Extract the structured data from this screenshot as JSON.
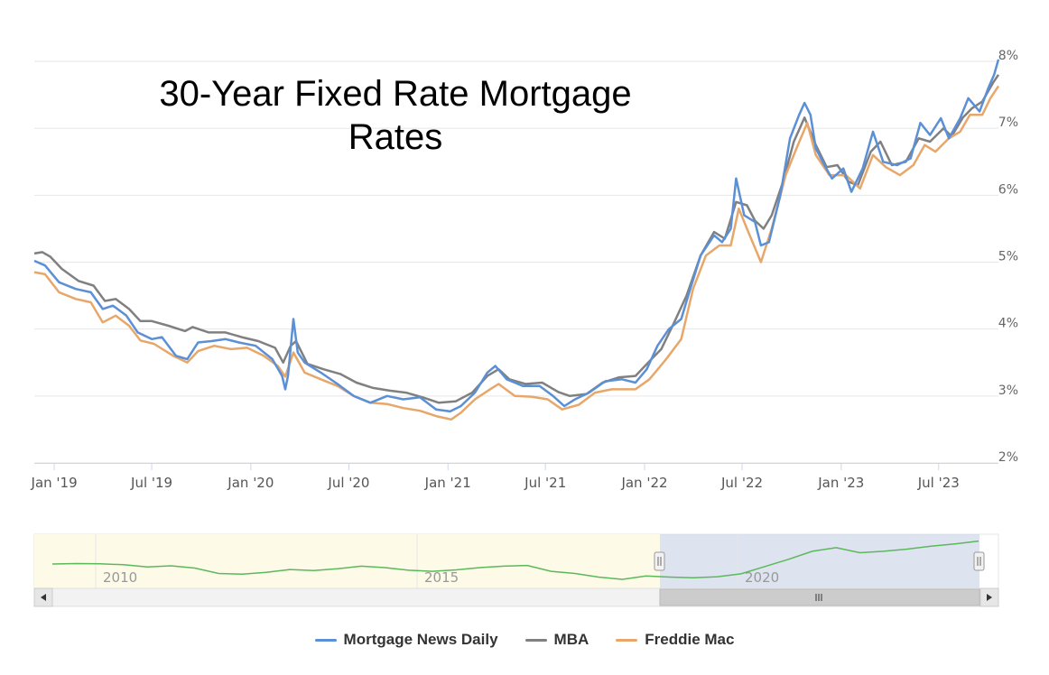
{
  "chart_data": {
    "type": "line",
    "title_lines": [
      "30-Year Fixed Rate Mortgage",
      "Rates"
    ],
    "y_unit": "%",
    "ylim": [
      2,
      8
    ],
    "y_ticks": [
      2,
      3,
      4,
      5,
      6,
      7,
      8
    ],
    "y_tick_labels": [
      "2%",
      "3%",
      "4%",
      "5%",
      "6%",
      "7%",
      "8%"
    ],
    "x_range": [
      "2018-11-25",
      "2023-10-20"
    ],
    "x_ticks": [
      {
        "date": "2019-01-01",
        "label": "Jan '19"
      },
      {
        "date": "2019-07-01",
        "label": "Jul '19"
      },
      {
        "date": "2020-01-01",
        "label": "Jan '20"
      },
      {
        "date": "2020-07-01",
        "label": "Jul '20"
      },
      {
        "date": "2021-01-01",
        "label": "Jan '21"
      },
      {
        "date": "2021-07-01",
        "label": "Jul '21"
      },
      {
        "date": "2022-01-01",
        "label": "Jan '22"
      },
      {
        "date": "2022-07-01",
        "label": "Jul '22"
      },
      {
        "date": "2023-01-01",
        "label": "Jan '23"
      },
      {
        "date": "2023-07-01",
        "label": "Jul '23"
      }
    ],
    "grid": true,
    "legend_position": "bottom-center",
    "series": [
      {
        "name": "Mortgage News Daily",
        "color": "#5b8fd6",
        "points": [
          [
            "2018-11-25",
            5.02
          ],
          [
            "2018-12-15",
            4.95
          ],
          [
            "2019-01-10",
            4.7
          ],
          [
            "2019-02-10",
            4.6
          ],
          [
            "2019-03-10",
            4.55
          ],
          [
            "2019-04-01",
            4.3
          ],
          [
            "2019-04-20",
            4.35
          ],
          [
            "2019-05-15",
            4.2
          ],
          [
            "2019-06-05",
            3.95
          ],
          [
            "2019-07-01",
            3.85
          ],
          [
            "2019-07-20",
            3.88
          ],
          [
            "2019-08-15",
            3.6
          ],
          [
            "2019-09-05",
            3.55
          ],
          [
            "2019-09-25",
            3.8
          ],
          [
            "2019-10-20",
            3.82
          ],
          [
            "2019-11-15",
            3.85
          ],
          [
            "2019-12-10",
            3.8
          ],
          [
            "2020-01-10",
            3.75
          ],
          [
            "2020-02-10",
            3.55
          ],
          [
            "2020-02-28",
            3.3
          ],
          [
            "2020-03-05",
            3.1
          ],
          [
            "2020-03-10",
            3.3
          ],
          [
            "2020-03-20",
            4.15
          ],
          [
            "2020-03-28",
            3.65
          ],
          [
            "2020-04-10",
            3.5
          ],
          [
            "2020-05-10",
            3.35
          ],
          [
            "2020-06-10",
            3.18
          ],
          [
            "2020-07-10",
            3.0
          ],
          [
            "2020-08-10",
            2.9
          ],
          [
            "2020-09-10",
            3.0
          ],
          [
            "2020-10-10",
            2.95
          ],
          [
            "2020-11-10",
            2.98
          ],
          [
            "2020-12-10",
            2.8
          ],
          [
            "2021-01-05",
            2.77
          ],
          [
            "2021-01-25",
            2.85
          ],
          [
            "2021-02-20",
            3.05
          ],
          [
            "2021-03-15",
            3.35
          ],
          [
            "2021-03-30",
            3.45
          ],
          [
            "2021-04-20",
            3.25
          ],
          [
            "2021-05-20",
            3.15
          ],
          [
            "2021-06-20",
            3.15
          ],
          [
            "2021-07-15",
            3.0
          ],
          [
            "2021-08-05",
            2.85
          ],
          [
            "2021-08-25",
            2.95
          ],
          [
            "2021-09-20",
            3.05
          ],
          [
            "2021-10-20",
            3.22
          ],
          [
            "2021-11-20",
            3.25
          ],
          [
            "2021-12-15",
            3.2
          ],
          [
            "2022-01-05",
            3.4
          ],
          [
            "2022-01-25",
            3.75
          ],
          [
            "2022-02-15",
            4.0
          ],
          [
            "2022-03-10",
            4.15
          ],
          [
            "2022-03-25",
            4.55
          ],
          [
            "2022-04-15",
            5.1
          ],
          [
            "2022-05-10",
            5.4
          ],
          [
            "2022-05-25",
            5.3
          ],
          [
            "2022-06-10",
            5.5
          ],
          [
            "2022-06-20",
            6.25
          ],
          [
            "2022-07-05",
            5.7
          ],
          [
            "2022-07-25",
            5.6
          ],
          [
            "2022-08-05",
            5.25
          ],
          [
            "2022-08-20",
            5.3
          ],
          [
            "2022-09-10",
            6.0
          ],
          [
            "2022-09-28",
            6.85
          ],
          [
            "2022-10-15",
            7.2
          ],
          [
            "2022-10-25",
            7.38
          ],
          [
            "2022-11-05",
            7.2
          ],
          [
            "2022-11-15",
            6.7
          ],
          [
            "2022-12-01",
            6.45
          ],
          [
            "2022-12-15",
            6.25
          ],
          [
            "2023-01-05",
            6.4
          ],
          [
            "2023-01-20",
            6.05
          ],
          [
            "2023-02-10",
            6.4
          ],
          [
            "2023-03-01",
            6.95
          ],
          [
            "2023-03-20",
            6.5
          ],
          [
            "2023-04-15",
            6.45
          ],
          [
            "2023-05-10",
            6.55
          ],
          [
            "2023-05-28",
            7.08
          ],
          [
            "2023-06-15",
            6.9
          ],
          [
            "2023-07-05",
            7.15
          ],
          [
            "2023-07-20",
            6.85
          ],
          [
            "2023-08-10",
            7.15
          ],
          [
            "2023-08-25",
            7.45
          ],
          [
            "2023-09-15",
            7.25
          ],
          [
            "2023-10-01",
            7.6
          ],
          [
            "2023-10-12",
            7.8
          ],
          [
            "2023-10-20",
            8.03
          ]
        ]
      },
      {
        "name": "MBA",
        "color": "#808080",
        "points": [
          [
            "2018-11-25",
            5.13
          ],
          [
            "2018-12-10",
            5.15
          ],
          [
            "2018-12-25",
            5.08
          ],
          [
            "2019-01-15",
            4.9
          ],
          [
            "2019-02-15",
            4.72
          ],
          [
            "2019-03-15",
            4.65
          ],
          [
            "2019-04-05",
            4.42
          ],
          [
            "2019-04-25",
            4.45
          ],
          [
            "2019-05-20",
            4.3
          ],
          [
            "2019-06-10",
            4.12
          ],
          [
            "2019-07-01",
            4.12
          ],
          [
            "2019-08-01",
            4.05
          ],
          [
            "2019-09-01",
            3.97
          ],
          [
            "2019-09-15",
            4.03
          ],
          [
            "2019-10-15",
            3.95
          ],
          [
            "2019-11-15",
            3.95
          ],
          [
            "2019-12-15",
            3.88
          ],
          [
            "2020-01-15",
            3.82
          ],
          [
            "2020-02-15",
            3.72
          ],
          [
            "2020-03-01",
            3.5
          ],
          [
            "2020-03-15",
            3.75
          ],
          [
            "2020-03-25",
            3.82
          ],
          [
            "2020-04-15",
            3.48
          ],
          [
            "2020-05-15",
            3.4
          ],
          [
            "2020-06-15",
            3.33
          ],
          [
            "2020-07-15",
            3.2
          ],
          [
            "2020-08-15",
            3.12
          ],
          [
            "2020-09-15",
            3.08
          ],
          [
            "2020-10-15",
            3.05
          ],
          [
            "2020-11-15",
            2.98
          ],
          [
            "2020-12-15",
            2.9
          ],
          [
            "2021-01-15",
            2.92
          ],
          [
            "2021-02-15",
            3.05
          ],
          [
            "2021-03-15",
            3.3
          ],
          [
            "2021-04-05",
            3.4
          ],
          [
            "2021-04-25",
            3.25
          ],
          [
            "2021-05-25",
            3.18
          ],
          [
            "2021-06-25",
            3.2
          ],
          [
            "2021-07-25",
            3.06
          ],
          [
            "2021-08-15",
            3.0
          ],
          [
            "2021-09-15",
            3.03
          ],
          [
            "2021-10-15",
            3.2
          ],
          [
            "2021-11-15",
            3.28
          ],
          [
            "2021-12-15",
            3.3
          ],
          [
            "2022-01-10",
            3.52
          ],
          [
            "2022-02-01",
            3.7
          ],
          [
            "2022-02-25",
            4.1
          ],
          [
            "2022-03-20",
            4.5
          ],
          [
            "2022-04-15",
            5.1
          ],
          [
            "2022-05-10",
            5.45
          ],
          [
            "2022-05-30",
            5.35
          ],
          [
            "2022-06-20",
            5.9
          ],
          [
            "2022-07-10",
            5.85
          ],
          [
            "2022-07-25",
            5.62
          ],
          [
            "2022-08-10",
            5.5
          ],
          [
            "2022-08-25",
            5.7
          ],
          [
            "2022-09-15",
            6.2
          ],
          [
            "2022-10-05",
            6.8
          ],
          [
            "2022-10-25",
            7.16
          ],
          [
            "2022-11-15",
            6.75
          ],
          [
            "2022-12-05",
            6.42
          ],
          [
            "2022-12-25",
            6.45
          ],
          [
            "2023-01-15",
            6.2
          ],
          [
            "2023-02-01",
            6.15
          ],
          [
            "2023-02-25",
            6.65
          ],
          [
            "2023-03-15",
            6.8
          ],
          [
            "2023-04-05",
            6.45
          ],
          [
            "2023-05-01",
            6.5
          ],
          [
            "2023-05-25",
            6.85
          ],
          [
            "2023-06-15",
            6.8
          ],
          [
            "2023-07-10",
            7.0
          ],
          [
            "2023-07-25",
            6.88
          ],
          [
            "2023-08-15",
            7.16
          ],
          [
            "2023-09-01",
            7.3
          ],
          [
            "2023-09-20",
            7.4
          ],
          [
            "2023-10-10",
            7.68
          ],
          [
            "2023-10-20",
            7.8
          ]
        ]
      },
      {
        "name": "Freddie Mac",
        "color": "#e7a76a",
        "points": [
          [
            "2018-11-25",
            4.85
          ],
          [
            "2018-12-15",
            4.82
          ],
          [
            "2019-01-10",
            4.55
          ],
          [
            "2019-02-10",
            4.45
          ],
          [
            "2019-03-10",
            4.4
          ],
          [
            "2019-04-01",
            4.1
          ],
          [
            "2019-04-25",
            4.2
          ],
          [
            "2019-05-20",
            4.05
          ],
          [
            "2019-06-10",
            3.83
          ],
          [
            "2019-07-05",
            3.78
          ],
          [
            "2019-08-10",
            3.6
          ],
          [
            "2019-09-05",
            3.5
          ],
          [
            "2019-09-25",
            3.67
          ],
          [
            "2019-10-25",
            3.75
          ],
          [
            "2019-11-25",
            3.7
          ],
          [
            "2019-12-25",
            3.72
          ],
          [
            "2020-01-25",
            3.6
          ],
          [
            "2020-02-20",
            3.45
          ],
          [
            "2020-03-05",
            3.29
          ],
          [
            "2020-03-20",
            3.65
          ],
          [
            "2020-04-10",
            3.35
          ],
          [
            "2020-05-10",
            3.25
          ],
          [
            "2020-06-10",
            3.15
          ],
          [
            "2020-07-10",
            3.0
          ],
          [
            "2020-08-10",
            2.9
          ],
          [
            "2020-09-10",
            2.88
          ],
          [
            "2020-10-10",
            2.82
          ],
          [
            "2020-11-10",
            2.78
          ],
          [
            "2020-12-10",
            2.7
          ],
          [
            "2021-01-07",
            2.65
          ],
          [
            "2021-01-25",
            2.75
          ],
          [
            "2021-02-20",
            2.95
          ],
          [
            "2021-03-20",
            3.1
          ],
          [
            "2021-04-05",
            3.18
          ],
          [
            "2021-05-05",
            3.0
          ],
          [
            "2021-06-05",
            2.99
          ],
          [
            "2021-07-05",
            2.95
          ],
          [
            "2021-08-01",
            2.8
          ],
          [
            "2021-09-01",
            2.87
          ],
          [
            "2021-10-01",
            3.05
          ],
          [
            "2021-11-01",
            3.1
          ],
          [
            "2021-12-15",
            3.1
          ],
          [
            "2022-01-10",
            3.25
          ],
          [
            "2022-02-10",
            3.55
          ],
          [
            "2022-03-10",
            3.85
          ],
          [
            "2022-04-01",
            4.6
          ],
          [
            "2022-04-25",
            5.1
          ],
          [
            "2022-05-20",
            5.25
          ],
          [
            "2022-06-10",
            5.25
          ],
          [
            "2022-06-25",
            5.8
          ],
          [
            "2022-07-10",
            5.5
          ],
          [
            "2022-08-05",
            5.0
          ],
          [
            "2022-08-25",
            5.5
          ],
          [
            "2022-09-20",
            6.3
          ],
          [
            "2022-10-10",
            6.7
          ],
          [
            "2022-10-30",
            7.08
          ],
          [
            "2022-11-15",
            6.6
          ],
          [
            "2022-12-10",
            6.3
          ],
          [
            "2023-01-10",
            6.3
          ],
          [
            "2023-02-05",
            6.1
          ],
          [
            "2023-03-01",
            6.6
          ],
          [
            "2023-03-25",
            6.42
          ],
          [
            "2023-04-20",
            6.3
          ],
          [
            "2023-05-15",
            6.45
          ],
          [
            "2023-06-05",
            6.75
          ],
          [
            "2023-06-25",
            6.65
          ],
          [
            "2023-07-20",
            6.85
          ],
          [
            "2023-08-10",
            6.95
          ],
          [
            "2023-08-28",
            7.2
          ],
          [
            "2023-09-20",
            7.2
          ],
          [
            "2023-10-05",
            7.45
          ],
          [
            "2023-10-20",
            7.63
          ]
        ]
      }
    ]
  },
  "navigator": {
    "labels": [
      "2010",
      "2015",
      "2020"
    ],
    "line_color": "#5cb85c",
    "values": [
      4.85,
      4.92,
      4.88,
      4.75,
      4.45,
      4.6,
      4.3,
      3.55,
      3.45,
      3.7,
      4.1,
      3.95,
      4.2,
      4.55,
      4.35,
      4.0,
      3.85,
      4.05,
      4.35,
      4.55,
      4.65,
      3.85,
      3.55,
      3.05,
      2.75,
      3.2,
      3.05,
      2.95,
      3.1,
      3.5,
      4.5,
      5.5,
      6.6,
      7.1,
      6.4,
      6.6,
      6.9,
      7.3,
      7.6,
      8.0
    ]
  },
  "legend": {
    "items": [
      {
        "label": "Mortgage News Daily",
        "color": "#5b8fd6"
      },
      {
        "label": "MBA",
        "color": "#808080"
      },
      {
        "label": "Freddie Mac",
        "color": "#e7a76a"
      }
    ]
  }
}
